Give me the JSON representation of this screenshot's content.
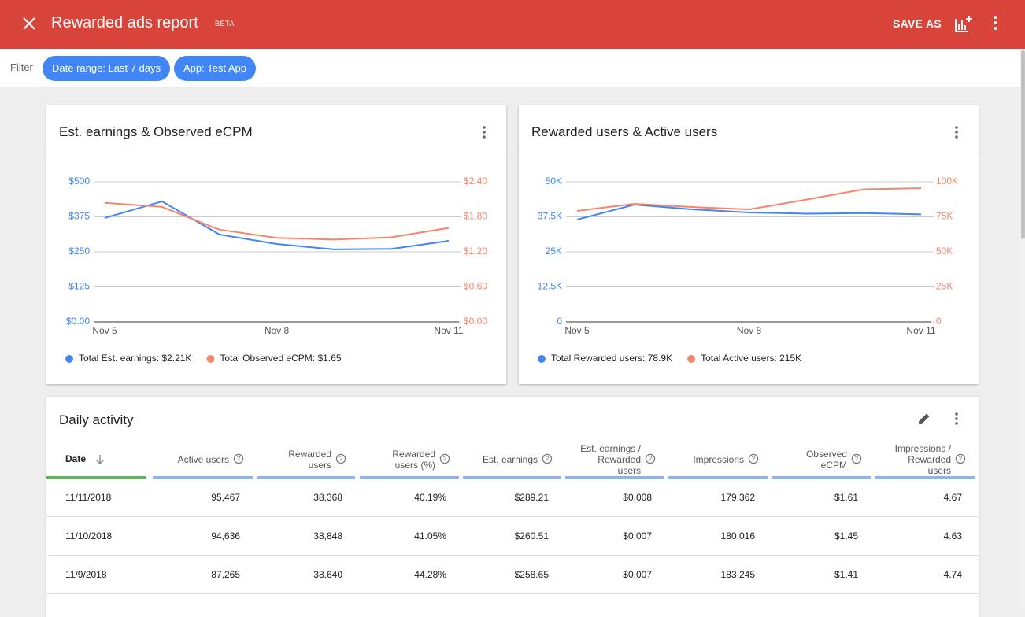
{
  "header": {
    "title": "Rewarded ads report",
    "badge": "BETA",
    "action": "SAVE AS"
  },
  "filter": {
    "label": "Filter",
    "chips": [
      "Date range: Last 7 days",
      "App: Test App"
    ]
  },
  "chart_data": [
    {
      "type": "line",
      "title": "Est. earnings & Observed eCPM",
      "categories": [
        "Nov 5",
        null,
        null,
        "Nov 8",
        null,
        null,
        "Nov 11"
      ],
      "series": [
        {
          "name": "Total Est. earnings: $2.21K",
          "color": "#4285f4",
          "values": [
            371,
            430,
            312,
            278,
            258.65,
            260.51,
            289.21
          ]
        },
        {
          "name": "Total Observed eCPM: $1.65",
          "color": "#f4866b",
          "axis": "y2",
          "values": [
            2.04,
            1.97,
            1.58,
            1.44,
            1.41,
            1.45,
            1.61
          ]
        }
      ],
      "ylim": [
        0,
        500
      ],
      "yticks": [
        {
          "value": 0,
          "label": "$0.00"
        },
        {
          "value": 125,
          "label": "$125"
        },
        {
          "value": 250,
          "label": "$250"
        },
        {
          "value": 375,
          "label": "$375"
        },
        {
          "value": 500,
          "label": "$500"
        }
      ],
      "y2lim": [
        0,
        2.4
      ],
      "y2ticks": [
        {
          "value": 0,
          "label": "$0.00"
        },
        {
          "value": 0.6,
          "label": "$0.60"
        },
        {
          "value": 1.2,
          "label": "$1.20"
        },
        {
          "value": 1.8,
          "label": "$1.80"
        },
        {
          "value": 2.4,
          "label": "$2.40"
        }
      ],
      "grid": true,
      "legend": "bottom"
    },
    {
      "type": "line",
      "title": "Rewarded users & Active users",
      "categories": [
        "Nov 5",
        null,
        null,
        "Nov 8",
        null,
        null,
        "Nov 11"
      ],
      "series": [
        {
          "name": "Total Rewarded users: 78.9K",
          "color": "#4285f4",
          "values": [
            36500,
            41850,
            40170,
            39050,
            38640,
            38848,
            38368
          ]
        },
        {
          "name": "Total Active users: 215K",
          "color": "#f4866b",
          "axis": "y2",
          "values": [
            79200,
            84300,
            82000,
            80300,
            87265,
            94636,
            95467
          ]
        }
      ],
      "ylim": [
        0,
        50000
      ],
      "yticks": [
        0,
        {
          "value": 12500,
          "label": "12.5K"
        },
        {
          "value": 25000,
          "label": "25K"
        },
        {
          "value": 37500,
          "label": "37.5K"
        },
        {
          "value": 50000,
          "label": "50K"
        }
      ],
      "y2lim": [
        0,
        100000
      ],
      "y2ticks": [
        0,
        {
          "value": 25000,
          "label": "25K"
        },
        {
          "value": 50000,
          "label": "50K"
        },
        {
          "value": 75000,
          "label": "75K"
        },
        {
          "value": 100000,
          "label": "100K"
        }
      ],
      "grid": true,
      "legend": "bottom"
    }
  ],
  "table": {
    "title": "Daily activity",
    "columns": [
      "Date",
      "Active users",
      "Rewarded users",
      "Rewarded users (%)",
      "Est. earnings",
      "Est. earnings / Rewarded users",
      "Impressions",
      "Observed eCPM",
      "Impressions / Rewarded users"
    ],
    "rows": [
      [
        "11/11/2018",
        "95,467",
        "38,368",
        "40.19%",
        "$289.21",
        "$0.008",
        "179,362",
        "$1.61",
        "4.67"
      ],
      [
        "11/10/2018",
        "94,636",
        "38,848",
        "41.05%",
        "$260.51",
        "$0.007",
        "180,016",
        "$1.45",
        "4.63"
      ],
      [
        "11/9/2018",
        "87,265",
        "38,640",
        "44.28%",
        "$258.65",
        "$0.007",
        "183,245",
        "$1.41",
        "4.74"
      ]
    ]
  }
}
